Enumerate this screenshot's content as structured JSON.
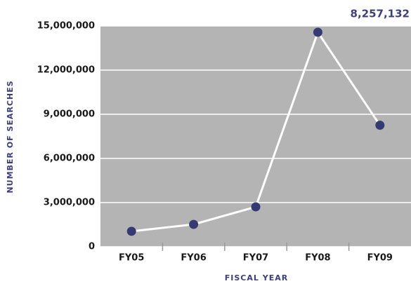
{
  "chart_data": {
    "type": "line",
    "annotation": "8,257,132",
    "xlabel": "FISCAL YEAR",
    "ylabel": "NUMBER OF SEARCHES",
    "categories": [
      "FY05",
      "FY06",
      "FY07",
      "FY08",
      "FY09"
    ],
    "values": [
      1050000,
      1520000,
      2710000,
      14570000,
      8257132
    ],
    "line_color": "#ffffff",
    "marker_color": "#363a73",
    "background": "#b4b4b4",
    "ylim": [
      0,
      15000000
    ],
    "yticks": [
      0,
      {
        "value": 3000000,
        "label": "3,000,000"
      },
      {
        "value": 6000000,
        "label": "6,000,000"
      },
      {
        "value": 9000000,
        "label": "9,000,000"
      },
      {
        "value": 12000000,
        "label": "12,000,000"
      },
      {
        "value": 15000000,
        "label": "15,000,000"
      }
    ],
    "grid": true
  }
}
